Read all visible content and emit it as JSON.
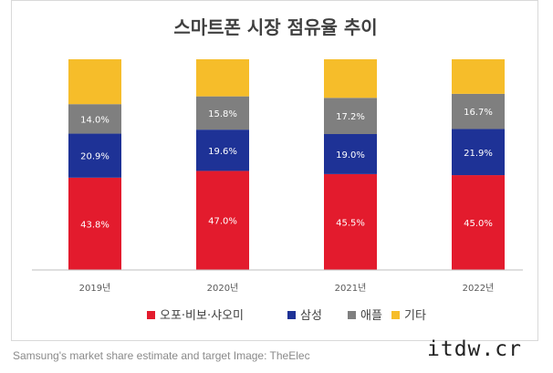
{
  "chart_data": {
    "type": "bar",
    "stacked": true,
    "title": "스마트폰 시장 점유율 추이",
    "categories": [
      "2019년",
      "2020년",
      "2021년",
      "2022년"
    ],
    "series": [
      {
        "name": "오포·비보·샤오미",
        "color": "#e31b2d",
        "values": [
          43.8,
          47.0,
          45.5,
          45.0
        ],
        "labels": [
          "43.8%",
          "47.0%",
          "45.5%",
          "45.0%"
        ]
      },
      {
        "name": "삼성",
        "color": "#1e3296",
        "values": [
          20.9,
          19.6,
          19.0,
          21.9
        ],
        "labels": [
          "20.9%",
          "19.6%",
          "19.0%",
          "21.9%"
        ]
      },
      {
        "name": "애플",
        "color": "#7f7f7f",
        "values": [
          14.0,
          15.8,
          17.2,
          16.7
        ],
        "labels": [
          "14.0%",
          "15.8%",
          "17.2%",
          "16.7%"
        ]
      },
      {
        "name": "기타",
        "color": "#f6bd2a",
        "values": [
          21.3,
          17.6,
          18.3,
          16.4
        ],
        "labels": [
          "",
          "",
          "",
          ""
        ]
      }
    ],
    "ylim": [
      0,
      100
    ],
    "grid": false,
    "legend": "bottom"
  },
  "caption": "Samsung's market share estimate and target Image: TheElec",
  "watermark": "itdw.cr"
}
